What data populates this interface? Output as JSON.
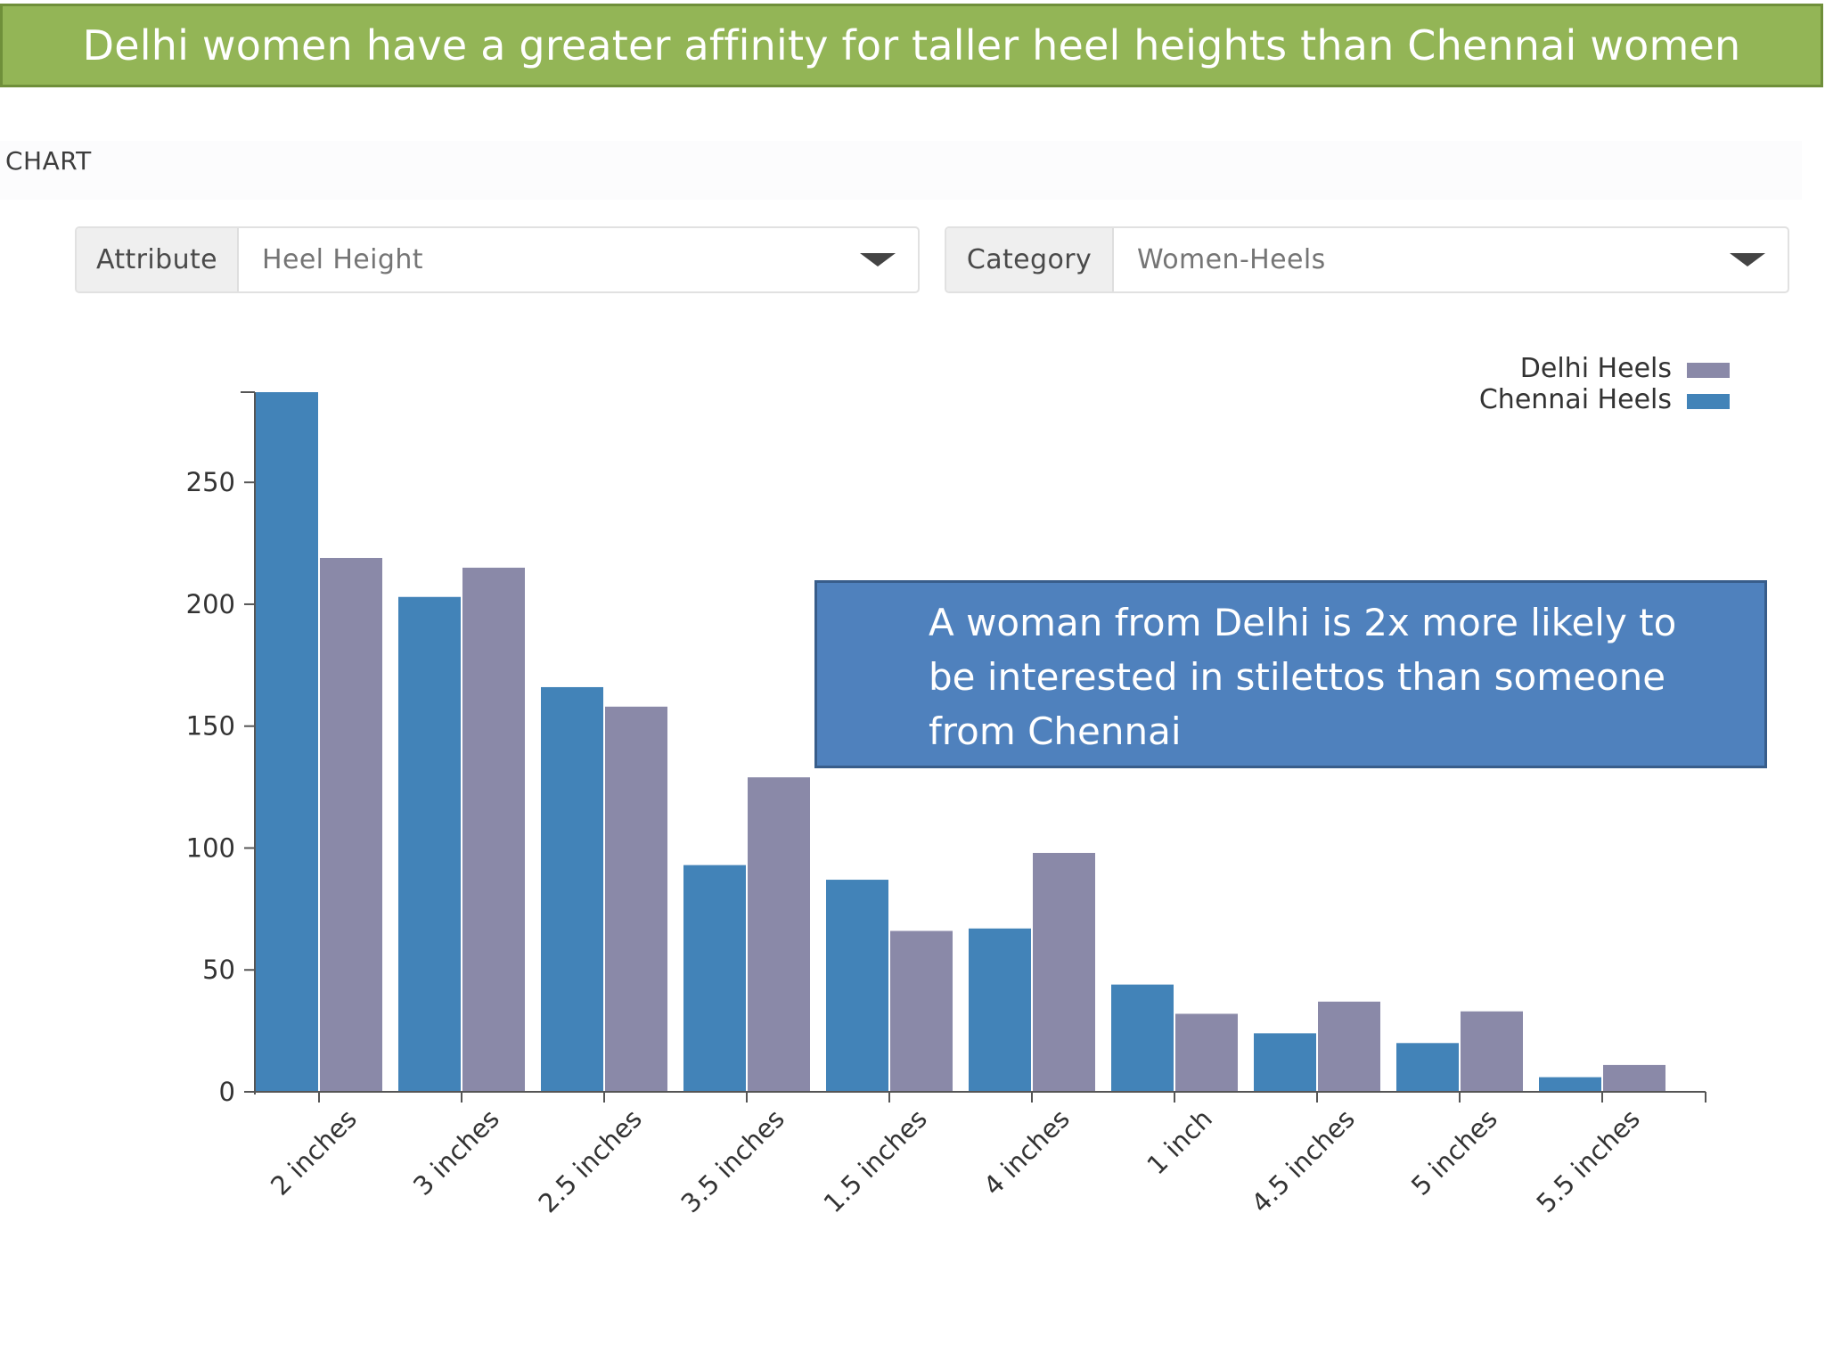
{
  "title": "Delhi women have a greater affinity for taller heel heights than Chennai women",
  "section_label": "CHART",
  "filters": {
    "attribute": {
      "label": "Attribute",
      "value": "Heel Height"
    },
    "category": {
      "label": "Category",
      "value": "Women-Heels"
    }
  },
  "callout": "A woman from Delhi is 2x more likely to be interested in stilettos than someone from Chennai",
  "colors": {
    "title_bg": "#93b556",
    "delhi": "#8a89a8",
    "chennai": "#4283b8",
    "callout_bg": "#4f81bd"
  },
  "chart_data": {
    "type": "bar",
    "categories": [
      "2 inches",
      "3 inches",
      "2.5 inches",
      "3.5 inches",
      "1.5 inches",
      "4 inches",
      "1 inch",
      "4.5 inches",
      "5 inches",
      "5.5 inches"
    ],
    "series": [
      {
        "name": "Chennai Heels",
        "color": "#4283b8",
        "values": [
          287,
          203,
          166,
          93,
          87,
          67,
          44,
          24,
          20,
          6
        ]
      },
      {
        "name": "Delhi Heels",
        "color": "#8a89a8",
        "values": [
          219,
          215,
          158,
          129,
          66,
          98,
          32,
          37,
          33,
          11
        ]
      }
    ],
    "legend_order": [
      "Delhi Heels",
      "Chennai Heels"
    ],
    "legend_position": "top-right",
    "yticks": [
      0,
      50,
      100,
      150,
      200,
      250
    ],
    "ylim": [
      0,
      287
    ],
    "xlabel": "",
    "ylabel": "",
    "grid": false
  }
}
